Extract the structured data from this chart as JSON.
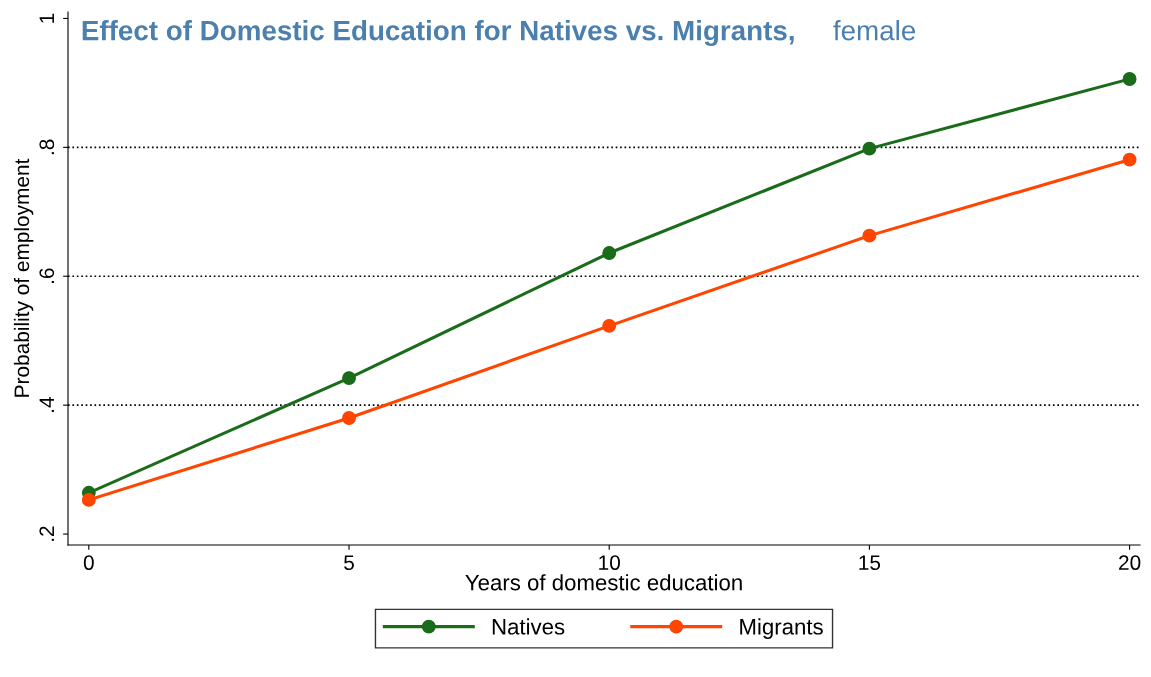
{
  "chart_data": {
    "type": "line",
    "title": "Effect of Domestic Education for Natives vs. Migrants,",
    "subtitle": "female",
    "xlabel": "Years of domestic education",
    "ylabel": "Probability of employment",
    "x": [
      0,
      5,
      10,
      15,
      20
    ],
    "series": [
      {
        "name": "Natives",
        "color": "#1a6b1a",
        "values": [
          0.264,
          0.442,
          0.636,
          0.798,
          0.906
        ]
      },
      {
        "name": "Migrants",
        "color": "#ff4500",
        "values": [
          0.253,
          0.38,
          0.523,
          0.663,
          0.781
        ]
      }
    ],
    "xlim": [
      -0.4,
      20.2
    ],
    "ylim": [
      0.183,
      1.01
    ],
    "xticks": [
      0,
      5,
      10,
      15,
      20
    ],
    "yticks": [
      {
        "value": 0.2,
        "label": ".2"
      },
      {
        "value": 0.4,
        "label": ".4"
      },
      {
        "value": 0.6,
        "label": ".6"
      },
      {
        "value": 0.8,
        "label": ".8"
      },
      {
        "value": 1,
        "label": "1"
      }
    ],
    "ref_lines": [
      {
        "axis": "y",
        "value": 0.4,
        "label": null,
        "color": "#000000",
        "line_style": "dotted"
      },
      {
        "axis": "y",
        "value": 0.6,
        "label": null,
        "color": "#000000",
        "line_style": "dotted"
      },
      {
        "axis": "y",
        "value": 0.8,
        "label": null,
        "color": "#000000",
        "line_style": "dotted"
      }
    ],
    "grid": false,
    "legend": "bottom",
    "marker": "circle",
    "line_style": "solid"
  }
}
